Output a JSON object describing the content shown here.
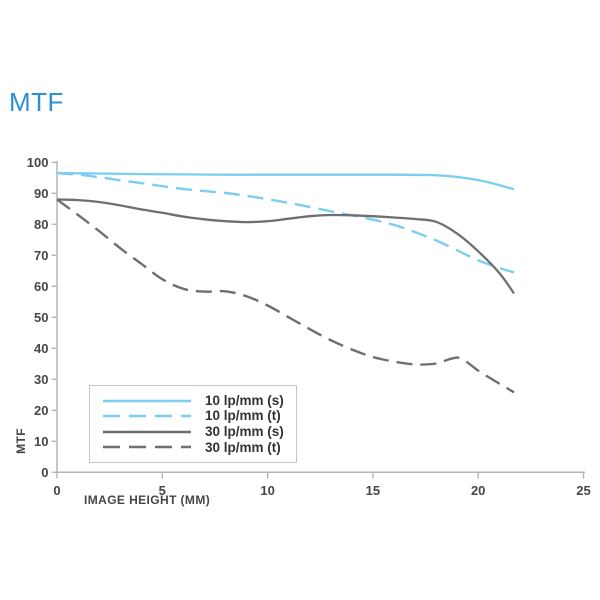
{
  "page": {
    "title": "MTF"
  },
  "colors": {
    "title_blue": "#2e90d2",
    "cyan_line": "#7dcdf0",
    "gray_line": "#6f6f6f",
    "axis_gray": "#b5b5b5",
    "tick_text": "#464646",
    "legend_border": "#c7c7c7",
    "legend_text": "#333333",
    "background": "#ffffff"
  },
  "chart_data": {
    "type": "line",
    "title": "MTF",
    "xlabel": "IMAGE HEIGHT (MM)",
    "ylabel": "MTF",
    "xlim": [
      0,
      25
    ],
    "ylim": [
      0,
      100
    ],
    "x_ticks": [
      0,
      5,
      10,
      15,
      20,
      25
    ],
    "y_ticks": [
      0,
      10,
      20,
      30,
      40,
      50,
      60,
      70,
      80,
      90,
      100
    ],
    "grid": false,
    "legend_position": "inside-lower-left",
    "series": [
      {
        "name": "10 lp/mm (s)",
        "color": "#7dcdf0",
        "style": "solid",
        "points": [
          [
            0,
            96.5
          ],
          [
            2,
            96.4
          ],
          [
            4,
            96.2
          ],
          [
            6,
            96.1
          ],
          [
            8,
            96.0
          ],
          [
            10,
            96.0
          ],
          [
            12,
            96.0
          ],
          [
            14,
            96.0
          ],
          [
            16,
            96.0
          ],
          [
            17.5,
            95.9
          ],
          [
            18.5,
            95.6
          ],
          [
            19.5,
            94.8
          ],
          [
            20.5,
            93.5
          ],
          [
            21.7,
            91.3
          ]
        ]
      },
      {
        "name": "10 lp/mm (t)",
        "color": "#7dcdf0",
        "style": "dashed",
        "points": [
          [
            0,
            96.5
          ],
          [
            1,
            96.0
          ],
          [
            2,
            95.2
          ],
          [
            3,
            94.2
          ],
          [
            4,
            93.3
          ],
          [
            5,
            92.3
          ],
          [
            6,
            91.4
          ],
          [
            7,
            90.7
          ],
          [
            8,
            90.1
          ],
          [
            9,
            89.2
          ],
          [
            10,
            88.1
          ],
          [
            11,
            86.9
          ],
          [
            12,
            85.6
          ],
          [
            13,
            84.2
          ],
          [
            14,
            82.9
          ],
          [
            15,
            81.5
          ],
          [
            16,
            79.8
          ],
          [
            17,
            77.5
          ],
          [
            18,
            74.8
          ],
          [
            19,
            71.6
          ],
          [
            20,
            68.4
          ],
          [
            21,
            65.9
          ],
          [
            21.7,
            64.5
          ]
        ]
      },
      {
        "name": "30 lp/mm (s)",
        "color": "#6f6f6f",
        "style": "solid",
        "points": [
          [
            0,
            88.0
          ],
          [
            1,
            87.8
          ],
          [
            2,
            87.2
          ],
          [
            3,
            86.1
          ],
          [
            4,
            84.8
          ],
          [
            5,
            83.7
          ],
          [
            6,
            82.5
          ],
          [
            7,
            81.6
          ],
          [
            8,
            81.0
          ],
          [
            9,
            80.7
          ],
          [
            10,
            81.0
          ],
          [
            11,
            81.8
          ],
          [
            12,
            82.6
          ],
          [
            13,
            83.0
          ],
          [
            14,
            82.9
          ],
          [
            15,
            82.6
          ],
          [
            16,
            82.2
          ],
          [
            17,
            81.7
          ],
          [
            18,
            80.8
          ],
          [
            19,
            77.0
          ],
          [
            20,
            71.3
          ],
          [
            21,
            64.3
          ],
          [
            21.7,
            57.7
          ]
        ]
      },
      {
        "name": "30 lp/mm (t)",
        "color": "#6f6f6f",
        "style": "dashed",
        "points": [
          [
            0,
            88.0
          ],
          [
            1,
            83.0
          ],
          [
            2,
            77.8
          ],
          [
            3,
            72.3
          ],
          [
            4,
            67.3
          ],
          [
            5,
            62.3
          ],
          [
            6,
            59.2
          ],
          [
            7,
            58.3
          ],
          [
            8,
            58.4
          ],
          [
            9,
            56.8
          ],
          [
            10,
            53.8
          ],
          [
            11,
            50.0
          ],
          [
            12,
            46.2
          ],
          [
            13,
            42.6
          ],
          [
            14,
            39.6
          ],
          [
            15,
            37.2
          ],
          [
            16,
            35.7
          ],
          [
            17,
            34.8
          ],
          [
            18,
            35.1
          ],
          [
            18.7,
            36.6
          ],
          [
            19.2,
            36.7
          ],
          [
            20,
            32.8
          ],
          [
            21,
            28.6
          ],
          [
            21.7,
            25.8
          ]
        ]
      }
    ]
  },
  "legend": {
    "items": [
      "10 lp/mm (s)",
      "10 lp/mm (t)",
      "30 lp/mm (s)",
      "30 lp/mm (t)"
    ]
  }
}
